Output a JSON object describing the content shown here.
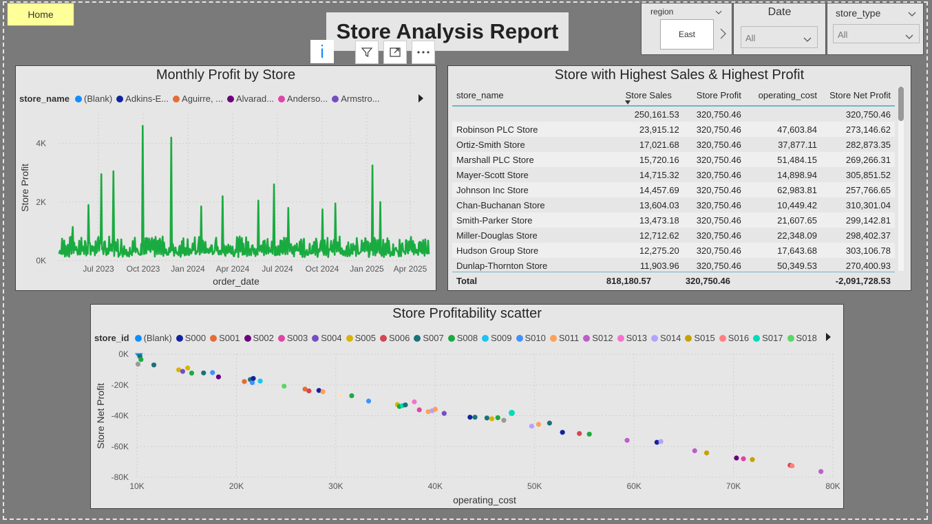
{
  "nav": {
    "home_label": "Home"
  },
  "report_title": "Store Analysis Report",
  "slicers": {
    "region": {
      "label": "region",
      "value": "East"
    },
    "date": {
      "label": "Date",
      "value": "All"
    },
    "store_type": {
      "label": "store_type",
      "value": "All"
    }
  },
  "visual_header_icons": [
    "info-icon",
    "filter-icon",
    "focus-mode-icon",
    "more-options-icon"
  ],
  "line_chart": {
    "title": "Monthly Profit by Store",
    "legend_label": "store_name",
    "legend_items": [
      {
        "name": "(Blank)",
        "color": "#118dff"
      },
      {
        "name": "Adkins-E...",
        "color": "#12239e"
      },
      {
        "name": "Aguirre, ...",
        "color": "#e66c37"
      },
      {
        "name": "Alvarad...",
        "color": "#6b007b"
      },
      {
        "name": "Anderso...",
        "color": "#e044a7"
      },
      {
        "name": "Armstro...",
        "color": "#744ec2"
      }
    ],
    "ylabel": "Store Profit",
    "xlabel": "order_date",
    "yticks": [
      "0K",
      "2K",
      "4K"
    ],
    "xticks": [
      "Jul 2023",
      "Oct 2023",
      "Jan 2024",
      "Apr 2024",
      "Jul 2024",
      "Oct 2024",
      "Jan 2025",
      "Apr 2025"
    ],
    "line_color": "#1aab40"
  },
  "table": {
    "title": "Store with Highest Sales & Highest Profit",
    "columns": [
      "store_name",
      "Store Sales",
      "Store Profit",
      "operating_cost",
      "Store Net Profit"
    ],
    "rows": [
      [
        "",
        "250,161.53",
        "320,750.46",
        "",
        "320,750.46"
      ],
      [
        "Robinson PLC Store",
        "23,915.12",
        "320,750.46",
        "47,603.84",
        "273,146.62"
      ],
      [
        "Ortiz-Smith Store",
        "17,021.68",
        "320,750.46",
        "37,877.11",
        "282,873.35"
      ],
      [
        "Marshall PLC Store",
        "15,720.16",
        "320,750.46",
        "51,484.15",
        "269,266.31"
      ],
      [
        "Mayer-Scott Store",
        "14,715.32",
        "320,750.46",
        "14,898.94",
        "305,851.52"
      ],
      [
        "Johnson Inc Store",
        "14,457.69",
        "320,750.46",
        "62,983.81",
        "257,766.65"
      ],
      [
        "Chan-Buchanan Store",
        "13,604.03",
        "320,750.46",
        "10,449.42",
        "310,301.04"
      ],
      [
        "Smith-Parker Store",
        "13,473.18",
        "320,750.46",
        "21,607.65",
        "299,142.81"
      ],
      [
        "Miller-Douglas Store",
        "12,712.62",
        "320,750.46",
        "22,348.09",
        "298,402.37"
      ],
      [
        "Hudson Group Store",
        "12,275.20",
        "320,750.46",
        "17,643.68",
        "303,106.78"
      ],
      [
        "Dunlap-Thornton Store",
        "11,903.96",
        "320,750.46",
        "50,349.53",
        "270,400.93"
      ]
    ],
    "total": {
      "label": "Total",
      "sales": "818,180.57",
      "profit": "320,750.46",
      "cost": "",
      "net": "-2,091,728.53"
    }
  },
  "chart_data": {
    "type": "scatter",
    "title": "Store Profitability scatter",
    "xlabel": "operating_cost",
    "ylabel": "Store Net Profit",
    "xlim": [
      10000,
      80000
    ],
    "ylim": [
      -80000,
      0
    ],
    "xticks": [
      "10K",
      "20K",
      "30K",
      "40K",
      "50K",
      "60K",
      "70K",
      "80K"
    ],
    "yticks": [
      "0K",
      "-20K",
      "-40K",
      "-60K",
      "-80K"
    ],
    "legend_label": "store_id",
    "legend": [
      {
        "name": "(Blank)",
        "color": "#118dff"
      },
      {
        "name": "S000",
        "color": "#12239e"
      },
      {
        "name": "S001",
        "color": "#e66c37"
      },
      {
        "name": "S002",
        "color": "#6b007b"
      },
      {
        "name": "S003",
        "color": "#e044a7"
      },
      {
        "name": "S004",
        "color": "#744ec2"
      },
      {
        "name": "S005",
        "color": "#d9b300"
      },
      {
        "name": "S006",
        "color": "#d64550"
      },
      {
        "name": "S007",
        "color": "#197278"
      },
      {
        "name": "S008",
        "color": "#1aab40"
      },
      {
        "name": "S009",
        "color": "#15c6f4"
      },
      {
        "name": "S010",
        "color": "#4092ff"
      },
      {
        "name": "S011",
        "color": "#ffa058"
      },
      {
        "name": "S012",
        "color": "#be5dc9"
      },
      {
        "name": "S013",
        "color": "#f472d0"
      },
      {
        "name": "S014",
        "color": "#b5a1ff"
      },
      {
        "name": "S015",
        "color": "#c4a200"
      },
      {
        "name": "S016",
        "color": "#ff8080"
      },
      {
        "name": "S017",
        "color": "#00dbbc"
      },
      {
        "name": "S018",
        "color": "#5bd667"
      }
    ],
    "points": [
      {
        "x": 10200,
        "y": -300,
        "c": "#118dff"
      },
      {
        "x": 10300,
        "y": -1500,
        "c": "#197278"
      },
      {
        "x": 10400,
        "y": -3500,
        "c": "#1aab40"
      },
      {
        "x": 10100,
        "y": -6500,
        "c": "#999999"
      },
      {
        "x": 11700,
        "y": -7000,
        "c": "#197278"
      },
      {
        "x": 14200,
        "y": -10200,
        "c": "#d9b300"
      },
      {
        "x": 14600,
        "y": -11200,
        "c": "#744ec2"
      },
      {
        "x": 15100,
        "y": -9000,
        "c": "#d9b300"
      },
      {
        "x": 15500,
        "y": -12300,
        "c": "#1aab40"
      },
      {
        "x": 16700,
        "y": -12200,
        "c": "#197278"
      },
      {
        "x": 17600,
        "y": -12000,
        "c": "#4092ff"
      },
      {
        "x": 18200,
        "y": -14800,
        "c": "#6b007b"
      },
      {
        "x": 20800,
        "y": -17800,
        "c": "#e66c37"
      },
      {
        "x": 21400,
        "y": -16500,
        "c": "#197278"
      },
      {
        "x": 21600,
        "y": -18500,
        "c": "#4092ff"
      },
      {
        "x": 21700,
        "y": -15800,
        "c": "#12239e"
      },
      {
        "x": 22400,
        "y": -17500,
        "c": "#15c6f4"
      },
      {
        "x": 24800,
        "y": -20800,
        "c": "#5bd667"
      },
      {
        "x": 26900,
        "y": -22700,
        "c": "#e66c37"
      },
      {
        "x": 27300,
        "y": -23900,
        "c": "#d64550"
      },
      {
        "x": 28300,
        "y": -23600,
        "c": "#12239e"
      },
      {
        "x": 28700,
        "y": -24400,
        "c": "#ffa058"
      },
      {
        "x": 30400,
        "y": -27000,
        "c": "#ffe4c0"
      },
      {
        "x": 31600,
        "y": -27000,
        "c": "#1aab40"
      },
      {
        "x": 33300,
        "y": -30500,
        "c": "#4092ff"
      },
      {
        "x": 36200,
        "y": -32800,
        "c": "#d9b300"
      },
      {
        "x": 36400,
        "y": -34000,
        "c": "#1aab40"
      },
      {
        "x": 36700,
        "y": -33500,
        "c": "#00dbbc"
      },
      {
        "x": 37000,
        "y": -33000,
        "c": "#197278"
      },
      {
        "x": 37900,
        "y": -31000,
        "c": "#f472d0"
      },
      {
        "x": 38400,
        "y": -36200,
        "c": "#e044a7"
      },
      {
        "x": 39300,
        "y": -37400,
        "c": "#ffa058"
      },
      {
        "x": 39700,
        "y": -36800,
        "c": "#b5a1ff"
      },
      {
        "x": 40000,
        "y": -35800,
        "c": "#ffa058"
      },
      {
        "x": 40900,
        "y": -38500,
        "c": "#744ec2"
      },
      {
        "x": 43500,
        "y": -41000,
        "c": "#12239e"
      },
      {
        "x": 44000,
        "y": -41000,
        "c": "#197278"
      },
      {
        "x": 45200,
        "y": -41500,
        "c": "#197278"
      },
      {
        "x": 45700,
        "y": -42000,
        "c": "#d9b300"
      },
      {
        "x": 46300,
        "y": -41300,
        "c": "#1aab40"
      },
      {
        "x": 46900,
        "y": -43000,
        "c": "#999999"
      },
      {
        "x": 47700,
        "y": -38200,
        "c": "#00dbbc"
      },
      {
        "x": 49700,
        "y": -46800,
        "c": "#b5a1ff"
      },
      {
        "x": 50400,
        "y": -45600,
        "c": "#ffa058"
      },
      {
        "x": 51500,
        "y": -44800,
        "c": "#197278"
      },
      {
        "x": 52800,
        "y": -50800,
        "c": "#12239e"
      },
      {
        "x": 54500,
        "y": -51600,
        "c": "#d64550"
      },
      {
        "x": 55500,
        "y": -52000,
        "c": "#1aab40"
      },
      {
        "x": 59300,
        "y": -56000,
        "c": "#be5dc9"
      },
      {
        "x": 62300,
        "y": -57300,
        "c": "#12239e"
      },
      {
        "x": 62700,
        "y": -56800,
        "c": "#b5a1ff"
      },
      {
        "x": 66100,
        "y": -62800,
        "c": "#be5dc9"
      },
      {
        "x": 67300,
        "y": -64200,
        "c": "#c4a200"
      },
      {
        "x": 70300,
        "y": -67500,
        "c": "#6b007b"
      },
      {
        "x": 71000,
        "y": -68000,
        "c": "#e044a7"
      },
      {
        "x": 71900,
        "y": -68500,
        "c": "#c4a200"
      },
      {
        "x": 75700,
        "y": -72200,
        "c": "#d64550"
      },
      {
        "x": 75900,
        "y": -72600,
        "c": "#ff8080"
      },
      {
        "x": 78800,
        "y": -76300,
        "c": "#be5dc9"
      }
    ]
  }
}
